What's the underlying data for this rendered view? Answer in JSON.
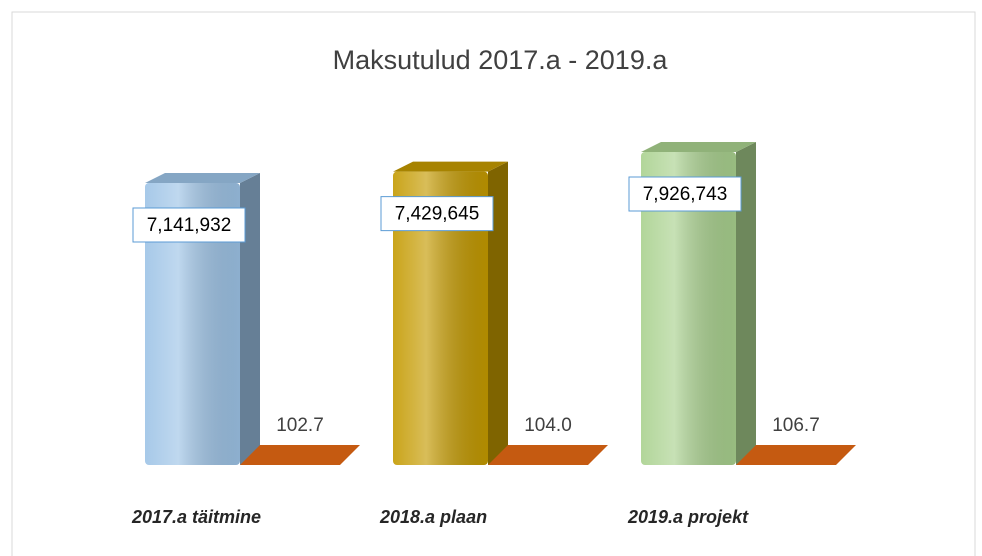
{
  "chart_data": {
    "type": "bar3d",
    "title": "Maksutulud 2017.a - 2019.a",
    "categories": [
      "2017.a täitmine",
      "2018.a plaan",
      "2019.a projekt"
    ],
    "series": [
      {
        "colors": [
          "#9dc3e6",
          "#c49a00",
          "#a9d18e"
        ],
        "values": [
          7141932,
          7429645,
          7926743
        ],
        "value_labels": [
          "7,141,932",
          "7,429,645",
          "7,926,743"
        ]
      },
      {
        "color": "#c55a11",
        "values": [
          102.7,
          104.0,
          106.7
        ],
        "value_labels": [
          "102.7",
          "104.0",
          "106.7"
        ]
      }
    ]
  }
}
